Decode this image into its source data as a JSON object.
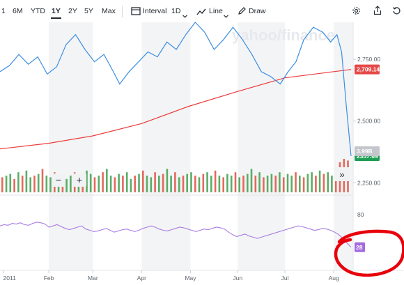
{
  "toolbar": {
    "ranges": [
      "1",
      "6M",
      "YTD",
      "1Y",
      "2Y",
      "5Y",
      "Max"
    ],
    "active_range": "1Y",
    "interval_label": "Interval",
    "interval_value": "1D",
    "chart_type_label": "Line",
    "draw_label": "Draw",
    "icons": [
      "candles-icon",
      "line-chart-icon",
      "pencil-icon",
      "gear-icon",
      "share-icon",
      "reset-icon"
    ]
  },
  "watermark": "yahoo/finance",
  "price_tags": {
    "sma": "2,709.14",
    "last": "2357.69",
    "volume": "3.99B"
  },
  "controls": {
    "zoom_out": "−",
    "zoom_in": "+",
    "expand": "»"
  },
  "annotation": {
    "color": "#e8000b",
    "shape": "hand-drawn-circle-around-rsi-value"
  },
  "colors": {
    "price_line": "#3b8de3",
    "sma_line": "#ec3a3a",
    "rsi_line": "#a77be3",
    "up_volume": "#3da04c",
    "down_volume": "#e0503f",
    "last_tag": "#1e9e54",
    "sma_tag": "#e54848",
    "rsi_tag": "#a46be0"
  },
  "chart_data": [
    {
      "type": "line",
      "ylim": [
        2200,
        2900
      ],
      "y_ticks": [
        "2,750.00",
        "2,500.00",
        "2,250.00"
      ],
      "y_tick_values": [
        2750,
        2500,
        2250
      ],
      "x_labels": [
        "2011",
        "Feb",
        "Mar",
        "Apr",
        "May",
        "Jun",
        "Jul",
        "Aug"
      ],
      "x_label_positions": [
        "2011-01-03",
        "2011-02-01",
        "2011-03-01",
        "2011-04-01",
        "2011-05-02",
        "2011-06-01",
        "2011-07-01",
        "2011-08-01"
      ],
      "x_range": [
        "2011-01-01",
        "2011-08-12"
      ],
      "grid": false,
      "series": [
        {
          "values": [
            [
              "2011-01-01",
              2700
            ],
            [
              "2011-01-07",
              2725
            ],
            [
              "2011-01-13",
              2770
            ],
            [
              "2011-01-19",
              2730
            ],
            [
              "2011-01-25",
              2760
            ],
            [
              "2011-01-31",
              2690
            ],
            [
              "2011-02-06",
              2720
            ],
            [
              "2011-02-12",
              2810
            ],
            [
              "2011-02-18",
              2850
            ],
            [
              "2011-02-24",
              2790
            ],
            [
              "2011-03-02",
              2740
            ],
            [
              "2011-03-08",
              2770
            ],
            [
              "2011-03-14",
              2700
            ],
            [
              "2011-03-18",
              2650
            ],
            [
              "2011-03-24",
              2700
            ],
            [
              "2011-03-30",
              2740
            ],
            [
              "2011-04-05",
              2780
            ],
            [
              "2011-04-11",
              2760
            ],
            [
              "2011-04-17",
              2820
            ],
            [
              "2011-04-23",
              2790
            ],
            [
              "2011-04-29",
              2850
            ],
            [
              "2011-05-05",
              2900
            ],
            [
              "2011-05-11",
              2860
            ],
            [
              "2011-05-17",
              2790
            ],
            [
              "2011-05-23",
              2830
            ],
            [
              "2011-05-29",
              2880
            ],
            [
              "2011-06-04",
              2830
            ],
            [
              "2011-06-10",
              2770
            ],
            [
              "2011-06-16",
              2700
            ],
            [
              "2011-06-22",
              2680
            ],
            [
              "2011-06-28",
              2650
            ],
            [
              "2011-07-03",
              2700
            ],
            [
              "2011-07-08",
              2740
            ],
            [
              "2011-07-13",
              2830
            ],
            [
              "2011-07-19",
              2880
            ],
            [
              "2011-07-25",
              2860
            ],
            [
              "2011-07-30",
              2820
            ],
            [
              "2011-08-03",
              2850
            ],
            [
              "2011-08-06",
              2780
            ],
            [
              "2011-08-09",
              2560
            ],
            [
              "2011-08-12",
              2358
            ]
          ]
        },
        {
          "values": [
            [
              "2011-01-01",
              2387
            ],
            [
              "2011-02-01",
              2410
            ],
            [
              "2011-03-01",
              2440
            ],
            [
              "2011-04-01",
              2490
            ],
            [
              "2011-05-01",
              2560
            ],
            [
              "2011-06-01",
              2620
            ],
            [
              "2011-07-01",
              2675
            ],
            [
              "2011-08-12",
              2709
            ]
          ]
        }
      ]
    },
    {
      "type": "bar",
      "volume": true,
      "value_labels": [
        "3.99B"
      ],
      "values_relative": [
        0.45,
        0.5,
        0.55,
        0.4,
        0.6,
        0.5,
        0.65,
        0.45,
        0.5,
        0.55,
        0.7,
        0.5,
        0.45,
        0.6,
        0.5,
        0.55,
        0.4,
        0.5,
        0.6,
        0.45,
        0.5,
        0.65,
        0.55,
        0.45,
        0.5,
        0.6,
        0.7,
        0.5,
        0.45,
        0.55,
        0.5,
        0.6,
        0.4,
        0.5,
        0.55,
        0.65,
        0.5,
        0.45,
        0.6,
        0.5,
        0.55,
        0.7,
        0.5,
        0.6,
        0.45,
        0.5,
        0.55,
        0.6,
        0.5,
        0.45,
        0.55,
        0.6,
        0.5,
        0.65,
        0.5,
        0.45,
        0.55,
        0.5,
        0.6,
        0.45,
        0.5,
        0.55,
        0.7,
        0.5,
        0.6,
        0.45,
        0.5,
        0.55,
        0.5,
        0.6,
        0.45,
        0.55,
        0.5,
        0.6,
        0.5,
        0.45,
        0.55,
        0.6,
        0.5,
        0.65,
        0.55,
        0.6,
        0.5,
        0.7,
        0.9,
        1.0,
        0.95
      ]
    },
    {
      "type": "line",
      "name": "rsi",
      "ylim": [
        0,
        100
      ],
      "y_ticks": [
        "80"
      ],
      "y_tick_values": [
        80
      ],
      "last_value": "28",
      "values": [
        62,
        64,
        63,
        66,
        65,
        67,
        64,
        63,
        66,
        68,
        67,
        65,
        60,
        62,
        64,
        61,
        58,
        56,
        58,
        60,
        62,
        57,
        55,
        53,
        54,
        56,
        58,
        55,
        52,
        54,
        56,
        57,
        55,
        53,
        55,
        58,
        60,
        62,
        60,
        57,
        55,
        54,
        56,
        58,
        60,
        59,
        57,
        55,
        53,
        55,
        57,
        56,
        58,
        60,
        59,
        57,
        52,
        48,
        45,
        47,
        49,
        46,
        44,
        42,
        44,
        46,
        48,
        50,
        52,
        54,
        56,
        58,
        60,
        62,
        61,
        59,
        57,
        55,
        56,
        58,
        57,
        55,
        52,
        48,
        42,
        35,
        28
      ]
    }
  ]
}
